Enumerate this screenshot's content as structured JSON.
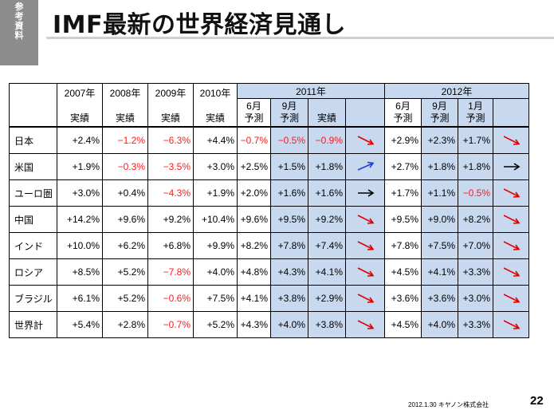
{
  "tag": [
    "参",
    "考",
    "資",
    "料"
  ],
  "title": "IMF最新の世界経済見通し",
  "table": {
    "years": [
      "2007年",
      "2008年",
      "2009年",
      "2010年"
    ],
    "kinds": [
      "実績",
      "実績",
      "実績",
      "実績"
    ],
    "group_2011": "2011年",
    "group_2012": "2012年",
    "sub_2011": [
      {
        "month": "6月",
        "kind": "予測"
      },
      {
        "month": "9月",
        "kind": "予測"
      },
      {
        "month": "",
        "kind": "実績"
      }
    ],
    "sub_2012": [
      {
        "month": "6月",
        "kind": "予測"
      },
      {
        "month": "9月",
        "kind": "予測"
      },
      {
        "month": "1月",
        "kind": "予測"
      }
    ],
    "rows": [
      {
        "name": "日本",
        "v": [
          "+2.4%",
          "−1.2%",
          "−6.3%",
          "+4.4%",
          "−0.7%",
          "−0.5%",
          "−0.9%"
        ],
        "a1": "down",
        "c1": "#e00000",
        "w": [
          "+2.9%",
          "+2.3%",
          "+1.7%"
        ],
        "a2": "down",
        "c2": "#e00000"
      },
      {
        "name": "米国",
        "v": [
          "+1.9%",
          "−0.3%",
          "−3.5%",
          "+3.0%",
          "+2.5%",
          "+1.5%",
          "+1.8%"
        ],
        "a1": "up",
        "c1": "#1a3fd6",
        "w": [
          "+2.7%",
          "+1.8%",
          "+1.8%"
        ],
        "a2": "flat",
        "c2": "#000000"
      },
      {
        "name": "ユーロ圏",
        "v": [
          "+3.0%",
          "+0.4%",
          "−4.3%",
          "+1.9%",
          "+2.0%",
          "+1.6%",
          "+1.6%"
        ],
        "a1": "flat",
        "c1": "#000000",
        "w": [
          "+1.7%",
          "+1.1%",
          "−0.5%"
        ],
        "a2": "down",
        "c2": "#e00000"
      },
      {
        "name": "中国",
        "v": [
          "+14.2%",
          "+9.6%",
          "+9.2%",
          "+10.4%",
          "+9.6%",
          "+9.5%",
          "+9.2%"
        ],
        "a1": "down",
        "c1": "#e00000",
        "w": [
          "+9.5%",
          "+9.0%",
          "+8.2%"
        ],
        "a2": "down",
        "c2": "#e00000"
      },
      {
        "name": "インド",
        "v": [
          "+10.0%",
          "+6.2%",
          "+6.8%",
          "+9.9%",
          "+8.2%",
          "+7.8%",
          "+7.4%"
        ],
        "a1": "down",
        "c1": "#e00000",
        "w": [
          "+7.8%",
          "+7.5%",
          "+7.0%"
        ],
        "a2": "down",
        "c2": "#e00000"
      },
      {
        "name": "ロシア",
        "v": [
          "+8.5%",
          "+5.2%",
          "−7.8%",
          "+4.0%",
          "+4.8%",
          "+4.3%",
          "+4.1%"
        ],
        "a1": "down",
        "c1": "#e00000",
        "w": [
          "+4.5%",
          "+4.1%",
          "+3.3%"
        ],
        "a2": "down",
        "c2": "#e00000"
      },
      {
        "name": "ブラジル",
        "v": [
          "+6.1%",
          "+5.2%",
          "−0.6%",
          "+7.5%",
          "+4.1%",
          "+3.8%",
          "+2.9%"
        ],
        "a1": "down",
        "c1": "#e00000",
        "w": [
          "+3.6%",
          "+3.6%",
          "+3.0%"
        ],
        "a2": "down",
        "c2": "#e00000"
      },
      {
        "name": "世界計",
        "v": [
          "+5.4%",
          "+2.8%",
          "−0.7%",
          "+5.2%",
          "+4.3%",
          "+4.0%",
          "+3.8%"
        ],
        "a1": "down",
        "c1": "#e00000",
        "w": [
          "+4.5%",
          "+4.0%",
          "+3.3%"
        ],
        "a2": "down",
        "c2": "#e00000"
      }
    ]
  },
  "footer": "2012.1.30 キヤノン株式会社",
  "page_number": "22"
}
